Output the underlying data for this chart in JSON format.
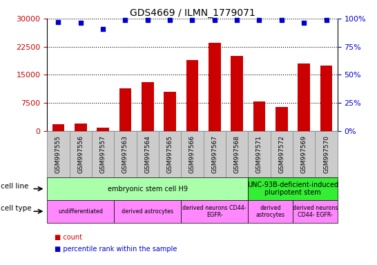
{
  "title": "GDS4669 / ILMN_1779071",
  "samples": [
    "GSM997555",
    "GSM997556",
    "GSM997557",
    "GSM997563",
    "GSM997564",
    "GSM997565",
    "GSM997566",
    "GSM997567",
    "GSM997568",
    "GSM997571",
    "GSM997572",
    "GSM997569",
    "GSM997570"
  ],
  "counts": [
    1800,
    2000,
    900,
    11500,
    13000,
    10500,
    19000,
    23500,
    20000,
    8000,
    6500,
    18000,
    17500
  ],
  "percentile": [
    97,
    96,
    91,
    99,
    99,
    99,
    99,
    99,
    99,
    99,
    99,
    96,
    99
  ],
  "ylim_left": [
    0,
    30000
  ],
  "ylim_right": [
    0,
    100
  ],
  "yticks_left": [
    0,
    7500,
    15000,
    22500,
    30000
  ],
  "yticks_right": [
    0,
    25,
    50,
    75,
    100
  ],
  "bar_color": "#cc0000",
  "dot_color": "#0000cc",
  "cell_line_groups": [
    {
      "label": "embryonic stem cell H9",
      "start": 0,
      "end": 9,
      "color": "#aaffaa"
    },
    {
      "label": "UNC-93B-deficient-induced\npluripotent stem",
      "start": 9,
      "end": 13,
      "color": "#33ee33"
    }
  ],
  "cell_type_groups": [
    {
      "label": "undifferentiated",
      "start": 0,
      "end": 3,
      "color": "#ff88ff"
    },
    {
      "label": "derived astrocytes",
      "start": 3,
      "end": 6,
      "color": "#ff88ff"
    },
    {
      "label": "derived neurons CD44-\nEGFR-",
      "start": 6,
      "end": 9,
      "color": "#ff88ff"
    },
    {
      "label": "derived\nastrocytes",
      "start": 9,
      "end": 11,
      "color": "#ff88ff"
    },
    {
      "label": "derived neurons\nCD44- EGFR-",
      "start": 11,
      "end": 13,
      "color": "#ff88ff"
    }
  ],
  "row_label_cell_line": "cell line",
  "row_label_cell_type": "cell type",
  "legend_count_label": "count",
  "legend_pct_label": "percentile rank within the sample",
  "bg_color": "#ffffff",
  "tick_area_bg": "#cccccc",
  "plot_area_bg": "#ffffff",
  "tick_label_fontsize": 6.5,
  "bar_width": 0.55,
  "title_fontsize": 10,
  "axis_fontsize": 8
}
